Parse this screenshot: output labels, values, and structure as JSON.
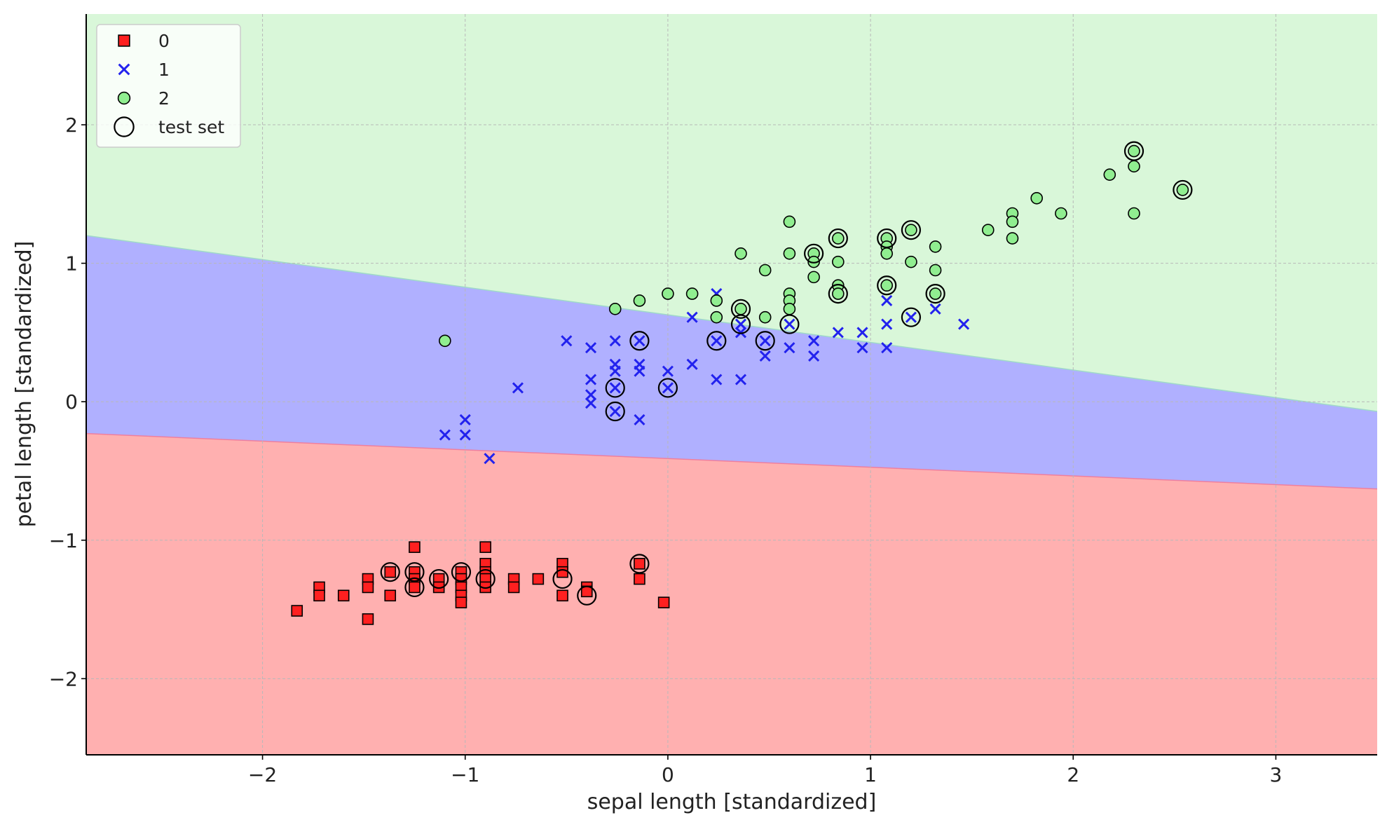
{
  "chart_data": {
    "type": "scatter",
    "title": "",
    "xlabel": "sepal length [standardized]",
    "ylabel": "petal length [standardized]",
    "xlim": [
      -2.87,
      3.5
    ],
    "ylim": [
      -2.55,
      2.8
    ],
    "xticks": [
      -2,
      -1,
      0,
      1,
      2,
      3
    ],
    "yticks": [
      -2,
      -1,
      0,
      1,
      2
    ],
    "xtick_labels": [
      "−2",
      "−1",
      "0",
      "1",
      "2",
      "3"
    ],
    "ytick_labels": [
      "−2",
      "−1",
      "0",
      "1",
      "2"
    ],
    "grid": true,
    "legend_position": "top-left",
    "decision_regions": [
      {
        "class": "0",
        "color": "#ffb0b0"
      },
      {
        "class": "1",
        "color": "#b0b0ff"
      },
      {
        "class": "2",
        "color": "#d9f7d9"
      }
    ],
    "boundary_0_1": [
      [
        -2.87,
        -0.23
      ],
      [
        3.5,
        -0.63
      ]
    ],
    "boundary_1_2": [
      [
        -2.87,
        1.2
      ],
      [
        3.5,
        -0.07
      ]
    ],
    "series": [
      {
        "name": "0",
        "marker": "square",
        "color": "#ff2020",
        "points": [
          [
            -1.83,
            -1.51
          ],
          [
            -1.72,
            -1.34
          ],
          [
            -1.72,
            -1.4
          ],
          [
            -1.6,
            -1.4
          ],
          [
            -1.48,
            -1.28
          ],
          [
            -1.48,
            -1.34
          ],
          [
            -1.48,
            -1.57
          ],
          [
            -1.37,
            -1.4
          ],
          [
            -1.37,
            -1.23
          ],
          [
            -1.25,
            -1.05
          ],
          [
            -1.25,
            -1.23
          ],
          [
            -1.25,
            -1.28
          ],
          [
            -1.25,
            -1.34
          ],
          [
            -1.13,
            -1.28
          ],
          [
            -1.13,
            -1.34
          ],
          [
            -1.02,
            -1.23
          ],
          [
            -1.02,
            -1.28
          ],
          [
            -1.02,
            -1.34
          ],
          [
            -1.02,
            -1.4
          ],
          [
            -1.02,
            -1.45
          ],
          [
            -0.9,
            -1.05
          ],
          [
            -0.9,
            -1.17
          ],
          [
            -0.9,
            -1.23
          ],
          [
            -0.9,
            -1.28
          ],
          [
            -0.9,
            -1.34
          ],
          [
            -0.76,
            -1.28
          ],
          [
            -0.76,
            -1.34
          ],
          [
            -0.64,
            -1.28
          ],
          [
            -0.52,
            -1.17
          ],
          [
            -0.52,
            -1.23
          ],
          [
            -0.52,
            -1.4
          ],
          [
            -0.4,
            -1.34
          ],
          [
            -0.4,
            -1.37
          ],
          [
            -0.14,
            -1.17
          ],
          [
            -0.14,
            -1.28
          ],
          [
            -0.02,
            -1.45
          ]
        ]
      },
      {
        "name": "1",
        "marker": "x",
        "color": "#2222ee",
        "points": [
          [
            -1.1,
            -0.24
          ],
          [
            -1.0,
            -0.13
          ],
          [
            -1.0,
            -0.24
          ],
          [
            -0.88,
            -0.41
          ],
          [
            -0.74,
            0.1
          ],
          [
            -0.5,
            0.44
          ],
          [
            -0.38,
            0.39
          ],
          [
            -0.38,
            0.16
          ],
          [
            -0.38,
            0.05
          ],
          [
            -0.38,
            -0.01
          ],
          [
            -0.26,
            0.44
          ],
          [
            -0.26,
            0.27
          ],
          [
            -0.26,
            0.22
          ],
          [
            -0.26,
            0.1
          ],
          [
            -0.26,
            -0.07
          ],
          [
            -0.14,
            0.44
          ],
          [
            -0.14,
            0.27
          ],
          [
            -0.14,
            0.22
          ],
          [
            -0.14,
            -0.13
          ],
          [
            0.0,
            0.22
          ],
          [
            0.0,
            0.1
          ],
          [
            0.12,
            0.61
          ],
          [
            0.12,
            0.27
          ],
          [
            0.24,
            0.78
          ],
          [
            0.24,
            0.44
          ],
          [
            0.24,
            0.16
          ],
          [
            0.36,
            0.56
          ],
          [
            0.36,
            0.5
          ],
          [
            0.36,
            0.16
          ],
          [
            0.48,
            0.44
          ],
          [
            0.48,
            0.33
          ],
          [
            0.6,
            0.56
          ],
          [
            0.6,
            0.39
          ],
          [
            0.72,
            0.44
          ],
          [
            0.72,
            0.33
          ],
          [
            0.84,
            0.5
          ],
          [
            0.96,
            0.5
          ],
          [
            0.96,
            0.39
          ],
          [
            1.08,
            0.73
          ],
          [
            1.08,
            0.56
          ],
          [
            1.08,
            0.39
          ],
          [
            1.2,
            0.61
          ],
          [
            1.32,
            0.67
          ],
          [
            1.46,
            0.56
          ]
        ]
      },
      {
        "name": "2",
        "marker": "circle",
        "color": "#90ee90",
        "points": [
          [
            -1.1,
            0.44
          ],
          [
            -0.26,
            0.67
          ],
          [
            -0.14,
            0.73
          ],
          [
            0.0,
            0.78
          ],
          [
            0.12,
            0.78
          ],
          [
            0.24,
            0.61
          ],
          [
            0.24,
            0.73
          ],
          [
            0.36,
            1.07
          ],
          [
            0.36,
            0.67
          ],
          [
            0.48,
            0.61
          ],
          [
            0.48,
            0.95
          ],
          [
            0.6,
            1.3
          ],
          [
            0.6,
            1.07
          ],
          [
            0.6,
            0.78
          ],
          [
            0.6,
            0.73
          ],
          [
            0.6,
            0.67
          ],
          [
            0.72,
            1.07
          ],
          [
            0.72,
            1.01
          ],
          [
            0.72,
            0.9
          ],
          [
            0.84,
            1.18
          ],
          [
            0.84,
            1.01
          ],
          [
            0.84,
            0.84
          ],
          [
            0.84,
            0.78
          ],
          [
            1.08,
            1.18
          ],
          [
            1.08,
            1.12
          ],
          [
            1.08,
            1.07
          ],
          [
            1.08,
            0.84
          ],
          [
            1.2,
            1.24
          ],
          [
            1.2,
            1.01
          ],
          [
            1.32,
            1.12
          ],
          [
            1.32,
            0.95
          ],
          [
            1.32,
            0.78
          ],
          [
            1.58,
            1.24
          ],
          [
            1.7,
            1.36
          ],
          [
            1.7,
            1.3
          ],
          [
            1.7,
            1.18
          ],
          [
            1.82,
            1.47
          ],
          [
            1.94,
            1.36
          ],
          [
            2.18,
            1.64
          ],
          [
            2.3,
            1.81
          ],
          [
            2.3,
            1.7
          ],
          [
            2.3,
            1.36
          ],
          [
            2.54,
            1.53
          ]
        ]
      },
      {
        "name": "test set",
        "marker": "open-circle",
        "color": "#000000",
        "points": [
          [
            -1.37,
            -1.23
          ],
          [
            -1.25,
            -1.23
          ],
          [
            -1.25,
            -1.34
          ],
          [
            -1.13,
            -1.28
          ],
          [
            -1.02,
            -1.23
          ],
          [
            -0.9,
            -1.28
          ],
          [
            -0.52,
            -1.28
          ],
          [
            -0.4,
            -1.4
          ],
          [
            -0.14,
            -1.17
          ],
          [
            -0.26,
            0.1
          ],
          [
            -0.26,
            -0.07
          ],
          [
            -0.14,
            0.44
          ],
          [
            0.0,
            0.1
          ],
          [
            0.24,
            0.44
          ],
          [
            0.36,
            0.56
          ],
          [
            0.36,
            0.67
          ],
          [
            0.48,
            0.44
          ],
          [
            0.6,
            0.56
          ],
          [
            0.72,
            1.07
          ],
          [
            0.84,
            1.18
          ],
          [
            0.84,
            0.78
          ],
          [
            1.08,
            1.18
          ],
          [
            1.08,
            0.84
          ],
          [
            1.2,
            1.24
          ],
          [
            1.2,
            0.61
          ],
          [
            1.32,
            0.78
          ],
          [
            2.3,
            1.81
          ],
          [
            2.54,
            1.53
          ]
        ]
      }
    ]
  }
}
